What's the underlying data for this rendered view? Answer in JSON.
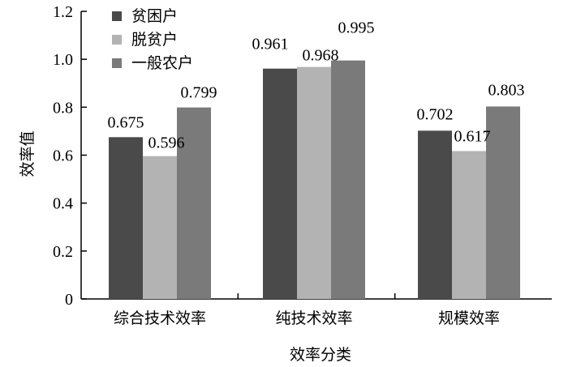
{
  "chart_data": {
    "type": "bar",
    "categories": [
      "综合技术效率",
      "纯技术效率",
      "规模效率"
    ],
    "series": [
      {
        "name": "贫困户",
        "values": [
          0.675,
          0.961,
          0.702
        ],
        "color": "#4a4a4a"
      },
      {
        "name": "脱贫户",
        "values": [
          0.596,
          0.968,
          0.617
        ],
        "color": "#b3b3b3"
      },
      {
        "name": "一般农户",
        "values": [
          0.799,
          0.995,
          0.803
        ],
        "color": "#7a7a7a"
      }
    ],
    "data_labels": [
      [
        "0.675",
        "0.961",
        "0.702"
      ],
      [
        "0.596",
        "0.968",
        "0.617"
      ],
      [
        "0.799",
        "0.995",
        "0.803"
      ]
    ],
    "xlabel": "效率分类",
    "ylabel": "效率值",
    "ylim": [
      0,
      1.2
    ],
    "yticks": [
      0,
      0.2,
      0.4,
      0.6,
      0.8,
      1.0,
      1.2
    ],
    "ytick_labels": [
      "0",
      "0.2",
      "0.4",
      "0.6",
      "0.8",
      "1.0",
      "1.2"
    ],
    "grid": false,
    "legend_position": "top-left"
  }
}
